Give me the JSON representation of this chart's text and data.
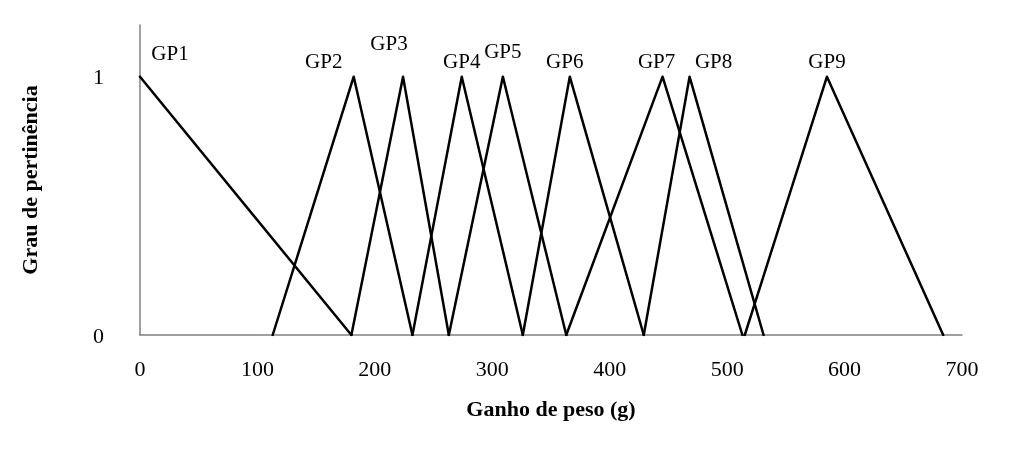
{
  "chart_data": {
    "type": "line",
    "xlabel": "Ganho de peso (g)",
    "ylabel": "Grau de pertinência",
    "xlim": [
      0,
      700
    ],
    "xticks": [
      0,
      100,
      200,
      300,
      400,
      500,
      600,
      700
    ],
    "ylim": [
      0,
      1.2
    ],
    "yticks": [
      0,
      1
    ],
    "grid": false,
    "legend": false,
    "marker": "none",
    "line_style": "solid",
    "series": [
      {
        "name": "GP1",
        "color": "#000000",
        "x": [
          0,
          180
        ],
        "values": [
          1,
          0
        ]
      },
      {
        "name": "GP2",
        "color": "#000000",
        "x": [
          113,
          182,
          232
        ],
        "values": [
          0,
          1,
          0
        ]
      },
      {
        "name": "GP3",
        "color": "#000000",
        "x": [
          180,
          224,
          263
        ],
        "values": [
          0,
          1,
          0
        ]
      },
      {
        "name": "GP4",
        "color": "#000000",
        "x": [
          232,
          274,
          326
        ],
        "values": [
          0,
          1,
          0
        ]
      },
      {
        "name": "GP5",
        "color": "#000000",
        "x": [
          263,
          309,
          363
        ],
        "values": [
          0,
          1,
          0
        ]
      },
      {
        "name": "GP6",
        "color": "#000000",
        "x": [
          326,
          366,
          429
        ],
        "values": [
          0,
          1,
          0
        ]
      },
      {
        "name": "GP7",
        "color": "#000000",
        "x": [
          363,
          445,
          513
        ],
        "values": [
          0,
          1,
          0
        ]
      },
      {
        "name": "GP8",
        "color": "#000000",
        "x": [
          429,
          468,
          531
        ],
        "values": [
          0,
          1,
          0
        ]
      },
      {
        "name": "GP9",
        "color": "#000000",
        "x": [
          515,
          585,
          684
        ],
        "values": [
          0,
          1,
          0
        ]
      }
    ]
  }
}
